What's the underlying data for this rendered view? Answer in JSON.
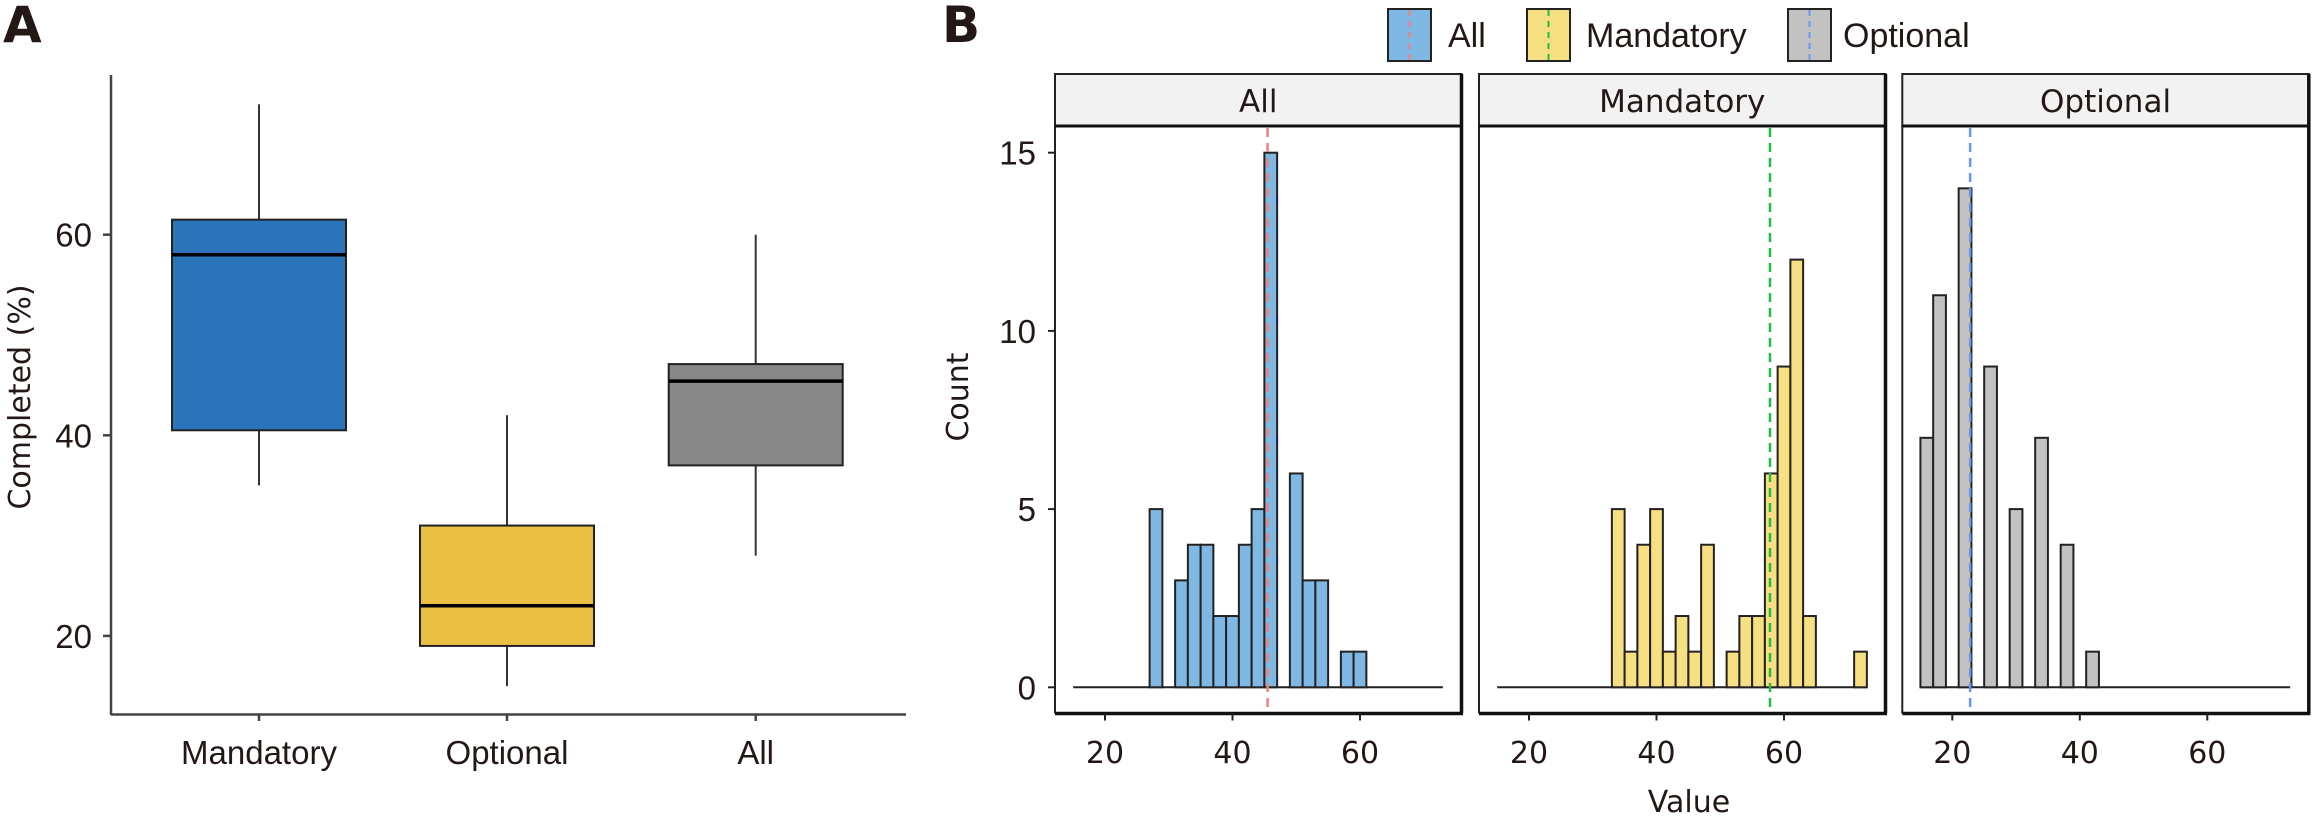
{
  "panels": {
    "a_label": "A",
    "b_label": "B"
  },
  "chart_data": [
    {
      "type": "boxplot",
      "panel": "A",
      "ylabel": "Completed (%)",
      "xlabel": "",
      "ylim": [
        12,
        78
      ],
      "yticks": [
        "20",
        "40",
        "60"
      ],
      "ytick_values": [
        20,
        40,
        60
      ],
      "categories": [
        "Mandatory",
        "Optional",
        "All"
      ],
      "boxes": [
        {
          "name": "Mandatory",
          "whisker_low": 35,
          "q1": 40.5,
          "median": 58,
          "q3": 61.5,
          "whisker_high": 73,
          "color": "#2b74ba"
        },
        {
          "name": "Optional",
          "whisker_low": 15,
          "q1": 19,
          "median": 23,
          "q3": 31,
          "whisker_high": 42,
          "color": "#e9c043"
        },
        {
          "name": "All",
          "whisker_low": 28,
          "q1": 37,
          "median": 45.4,
          "q3": 47.1,
          "whisker_high": 60,
          "color": "#878787"
        }
      ],
      "grid": false
    },
    {
      "type": "histogram",
      "panel": "B",
      "xlabel": "Value",
      "ylabel": "Count",
      "xlim": [
        12,
        76
      ],
      "ylim": [
        -1.4,
        16.2
      ],
      "xticks": [
        "20",
        "40",
        "60"
      ],
      "xtick_values": [
        20,
        40,
        60
      ],
      "yticks": [
        "0",
        "5",
        "10",
        "15"
      ],
      "ytick_values": [
        0,
        5,
        10,
        15
      ],
      "bin_width": 2,
      "baseline_range": [
        15,
        73
      ],
      "legend": {
        "placement": "top",
        "items": [
          {
            "label": "All",
            "fill": "#7fb8e2",
            "line": "#f08080"
          },
          {
            "label": "Mandatory",
            "fill": "#f7e081",
            "line": "#22bb44"
          },
          {
            "label": "Optional",
            "fill": "#c2c2c2",
            "line": "#6699ee"
          }
        ]
      },
      "facets": [
        {
          "name": "All",
          "fill": "#7fb8e2",
          "mean_line": 45.5,
          "mean_color": "#f08080",
          "bins": [
            {
              "start": 27,
              "count": 5
            },
            {
              "start": 31,
              "count": 3
            },
            {
              "start": 33,
              "count": 4
            },
            {
              "start": 35,
              "count": 4
            },
            {
              "start": 37,
              "count": 2
            },
            {
              "start": 39,
              "count": 2
            },
            {
              "start": 41,
              "count": 4
            },
            {
              "start": 43,
              "count": 5
            },
            {
              "start": 45,
              "count": 15
            },
            {
              "start": 49,
              "count": 6
            },
            {
              "start": 51,
              "count": 3
            },
            {
              "start": 53,
              "count": 3
            },
            {
              "start": 57,
              "count": 1
            },
            {
              "start": 59,
              "count": 1
            }
          ]
        },
        {
          "name": "Mandatory",
          "fill": "#f7e081",
          "mean_line": 57.8,
          "mean_color": "#22bb44",
          "bins": [
            {
              "start": 33,
              "count": 5
            },
            {
              "start": 35,
              "count": 1
            },
            {
              "start": 37,
              "count": 4
            },
            {
              "start": 39,
              "count": 5
            },
            {
              "start": 41,
              "count": 1
            },
            {
              "start": 43,
              "count": 2
            },
            {
              "start": 45,
              "count": 1
            },
            {
              "start": 47,
              "count": 4
            },
            {
              "start": 51,
              "count": 1
            },
            {
              "start": 53,
              "count": 2
            },
            {
              "start": 55,
              "count": 2
            },
            {
              "start": 57,
              "count": 6
            },
            {
              "start": 59,
              "count": 9
            },
            {
              "start": 61,
              "count": 12
            },
            {
              "start": 63,
              "count": 2
            },
            {
              "start": 71,
              "count": 1
            }
          ]
        },
        {
          "name": "Optional",
          "fill": "#c2c2c2",
          "mean_line": 22.8,
          "mean_color": "#6699ee",
          "bins": [
            {
              "start": 15,
              "count": 7
            },
            {
              "start": 17,
              "count": 11
            },
            {
              "start": 21,
              "count": 14
            },
            {
              "start": 25,
              "count": 9
            },
            {
              "start": 29,
              "count": 5
            },
            {
              "start": 33,
              "count": 7
            },
            {
              "start": 37,
              "count": 4
            },
            {
              "start": 41,
              "count": 1
            }
          ]
        }
      ]
    }
  ]
}
